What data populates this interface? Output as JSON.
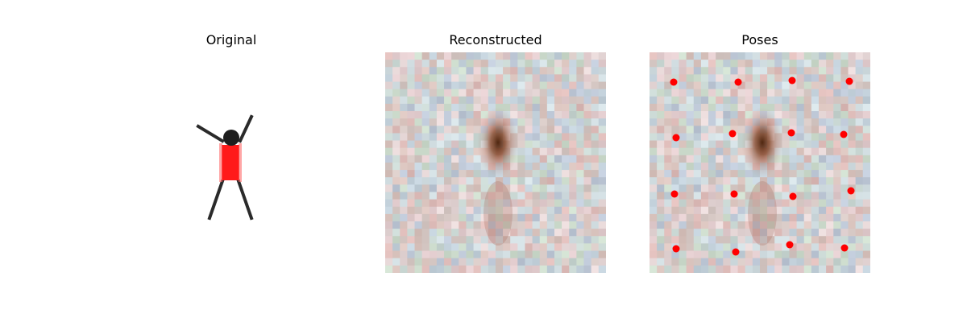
{
  "panels": {
    "original": {
      "title": "Original"
    },
    "reconstructed": {
      "title": "Reconstructed"
    },
    "poses": {
      "title": "Poses"
    }
  },
  "colors": {
    "figure_body": "#ff1a1a",
    "figure_head": "#1e1e1e",
    "figure_limbs": "#2a2a2a",
    "pose_marker": "#ff0000",
    "noise_base": "#d9d2cc",
    "reconstruction_blob": "#5a2a10"
  },
  "poses": {
    "marker_count": 16
  }
}
